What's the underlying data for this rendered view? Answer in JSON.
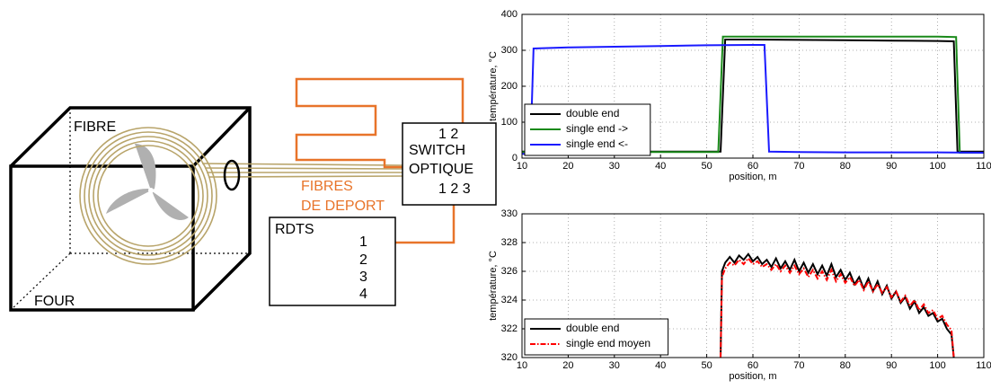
{
  "diagram": {
    "labels": [
      "FIBRE",
      "FOUR",
      "1 2",
      "SWITCH",
      "OPTIQUE",
      "1 2 3",
      "FIBRES",
      "DE DEPORT",
      "RDTS",
      "1",
      "2",
      "3",
      "4"
    ]
  },
  "chart_data": [
    {
      "type": "line",
      "xlabel": "position, m",
      "ylabel": "température, °C",
      "xlim": [
        10,
        110
      ],
      "xticks": [
        10,
        20,
        30,
        40,
        50,
        60,
        70,
        80,
        90,
        100,
        110
      ],
      "ylim": [
        0,
        400
      ],
      "yticks": [
        0,
        100,
        200,
        300,
        400
      ],
      "grid": true,
      "legend": "lower left",
      "series": [
        {
          "name": "double end",
          "color": "#000000",
          "linestyle": "solid",
          "x": [
            10,
            53,
            54,
            60,
            70,
            80,
            90,
            100,
            103.5,
            104.3,
            110
          ],
          "values": [
            18,
            18,
            330,
            330,
            329,
            328,
            327,
            326,
            325,
            18,
            18
          ]
        },
        {
          "name": "single end ->",
          "color": "#1a8a1a",
          "linestyle": "solid",
          "x": [
            10,
            52.5,
            53.5,
            60,
            70,
            80,
            90,
            100,
            104,
            104.8,
            110
          ],
          "values": [
            17,
            17,
            338,
            338,
            338,
            338,
            338,
            338,
            337,
            15,
            15
          ]
        },
        {
          "name": "single end <-",
          "color": "#1a1aff",
          "linestyle": "solid",
          "x": [
            10,
            11.8,
            12.5,
            20,
            30,
            40,
            50,
            60,
            62.5,
            63.5,
            70,
            80,
            90,
            100,
            110
          ],
          "values": [
            12,
            12,
            305,
            308,
            310,
            312,
            314,
            315,
            315,
            18,
            17,
            16,
            16,
            16,
            15
          ]
        }
      ]
    },
    {
      "type": "line",
      "xlabel": "position, m",
      "ylabel": "température, °C",
      "xlim": [
        10,
        110
      ],
      "xticks": [
        10,
        20,
        30,
        40,
        50,
        60,
        70,
        80,
        90,
        100,
        110
      ],
      "ylim": [
        320,
        330
      ],
      "yticks": [
        320,
        322,
        324,
        326,
        328,
        330
      ],
      "grid": true,
      "legend": "lower left",
      "series": [
        {
          "name": "double end",
          "color": "#000000",
          "linestyle": "solid",
          "x": [
            53,
            53.3,
            54,
            55,
            56,
            57,
            58,
            59,
            60,
            61,
            62,
            63,
            64,
            65,
            66,
            67,
            68,
            69,
            70,
            71,
            72,
            73,
            74,
            75,
            76,
            77,
            78,
            79,
            80,
            81,
            82,
            83,
            84,
            85,
            86,
            87,
            88,
            89,
            90,
            91,
            92,
            93,
            94,
            95,
            96,
            97,
            98,
            99,
            100,
            101,
            102,
            103,
            103.5
          ],
          "values": [
            320,
            326.0,
            326.6,
            327.0,
            326.6,
            327.1,
            326.8,
            327.2,
            326.7,
            327.0,
            326.5,
            326.8,
            326.3,
            326.9,
            326.2,
            326.7,
            326.1,
            326.8,
            326.0,
            326.6,
            325.9,
            326.5,
            325.8,
            326.4,
            325.7,
            326.5,
            325.6,
            326.1,
            325.4,
            325.9,
            325.1,
            325.6,
            324.8,
            325.5,
            324.6,
            325.3,
            324.4,
            325.0,
            324.1,
            324.6,
            323.8,
            324.2,
            323.4,
            323.9,
            323.1,
            323.5,
            322.9,
            323.1,
            322.5,
            322.7,
            322.0,
            321.6,
            320
          ]
        },
        {
          "name": "single end moyen",
          "color": "#ff0000",
          "linestyle": "dashdot",
          "x": [
            53,
            53.3,
            54,
            55,
            56,
            57,
            58,
            59,
            60,
            61,
            62,
            63,
            64,
            65,
            66,
            67,
            68,
            69,
            70,
            71,
            72,
            73,
            74,
            75,
            76,
            77,
            78,
            79,
            80,
            81,
            82,
            83,
            84,
            85,
            86,
            87,
            88,
            89,
            90,
            91,
            92,
            93,
            94,
            95,
            96,
            97,
            98,
            99,
            100,
            101,
            102,
            103,
            103.5
          ],
          "values": [
            320,
            325.6,
            326.2,
            326.6,
            326.4,
            326.8,
            326.5,
            326.9,
            326.5,
            326.7,
            326.3,
            326.5,
            326.1,
            326.5,
            326.0,
            326.4,
            325.9,
            326.4,
            325.8,
            326.2,
            325.6,
            326.1,
            325.5,
            326.0,
            325.4,
            326.1,
            325.3,
            325.8,
            325.2,
            325.6,
            325.0,
            325.4,
            324.7,
            325.3,
            324.6,
            325.1,
            324.5,
            324.9,
            324.2,
            324.6,
            323.9,
            324.3,
            323.6,
            324.0,
            323.3,
            323.7,
            323.1,
            323.3,
            322.7,
            322.9,
            322.3,
            321.9,
            320
          ]
        }
      ]
    }
  ]
}
